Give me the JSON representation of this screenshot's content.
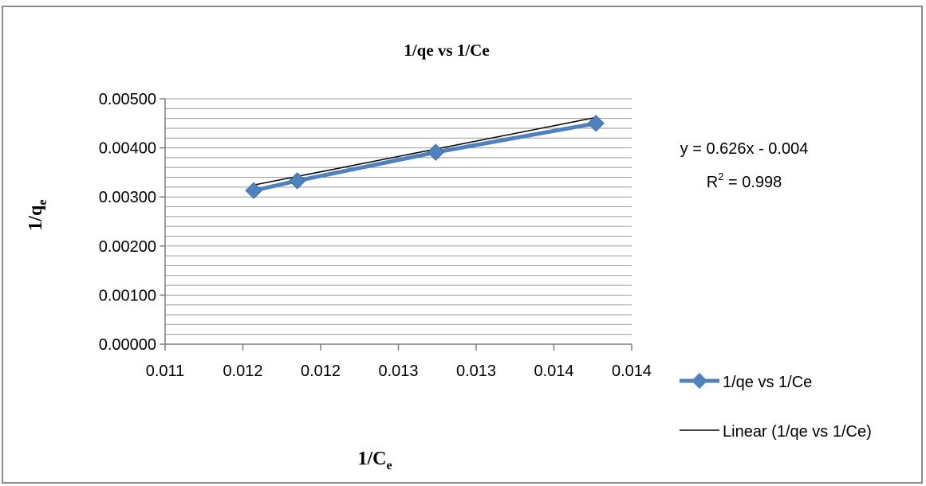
{
  "chart_data": {
    "type": "scatter",
    "title": "1/qe vs 1/Ce",
    "xlabel_main": "1/C",
    "xlabel_sub": "e",
    "ylabel_main": "1/q",
    "ylabel_sub": "e",
    "xlim": [
      0.011,
      0.014
    ],
    "ylim": [
      0,
      0.005
    ],
    "x_tick_labels": [
      "0.011",
      "0.012",
      "0.012",
      "0.013",
      "0.013",
      "0.014",
      "0.014"
    ],
    "y_tick_labels": [
      "0.00000",
      "0.00100",
      "0.00200",
      "0.00300",
      "0.00400",
      "0.00500"
    ],
    "y_ticks": [
      0,
      0.001,
      0.002,
      0.003,
      0.004,
      0.005
    ],
    "y_minor_step": 0.0002,
    "grid": true,
    "legend_position": "right",
    "series": [
      {
        "name": "1/qe vs 1/Ce",
        "color": "#4f81bd",
        "marker": "diamond",
        "x": [
          0.01157,
          0.01185,
          0.01274,
          0.01377
        ],
        "y": [
          0.00313,
          0.00333,
          0.00391,
          0.0045
        ]
      }
    ],
    "trendline": {
      "name": "Linear (1/qe vs 1/Ce)",
      "color": "#000000",
      "slope": 0.626,
      "intercept": -0.004,
      "equation": "y = 0.626x - 0.004",
      "r2_prefix": "R",
      "r2_sup": "2",
      "r2_value": " = 0.998"
    }
  }
}
